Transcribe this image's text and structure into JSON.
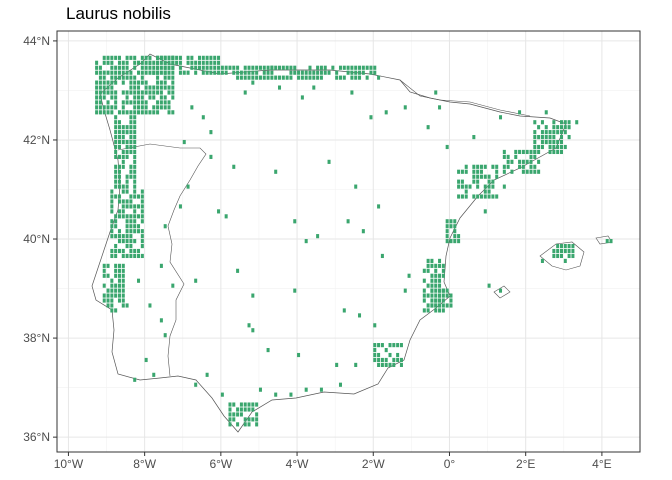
{
  "title": "Laurus nobilis",
  "colors": {
    "cell": "#3aa66e",
    "panel_border": "#333333",
    "grid_major": "#e6e6e6",
    "grid_minor": "#f2f2f2",
    "coast": "#555555",
    "tick_text": "#4d4d4d"
  },
  "chart_data": {
    "type": "map",
    "title": "Laurus nobilis",
    "xlim": [
      -10.3,
      5.0
    ],
    "ylim": [
      35.7,
      44.2
    ],
    "x_ticks": [
      {
        "value": -10,
        "label": "10°W"
      },
      {
        "value": -8,
        "label": "8°W"
      },
      {
        "value": -6,
        "label": "6°W"
      },
      {
        "value": -4,
        "label": "4°W"
      },
      {
        "value": -2,
        "label": "2°W"
      },
      {
        "value": 0,
        "label": "0°"
      },
      {
        "value": 2,
        "label": "2°E"
      },
      {
        "value": 4,
        "label": "4°E"
      }
    ],
    "y_ticks": [
      {
        "value": 36,
        "label": "36°N"
      },
      {
        "value": 38,
        "label": "38°N"
      },
      {
        "value": 40,
        "label": "40°N"
      },
      {
        "value": 42,
        "label": "42°N"
      },
      {
        "value": 44,
        "label": "44°N"
      }
    ],
    "grid": true,
    "cell_size_deg": 0.1,
    "occurrence_blocks": [
      {
        "lon": [
          -9.3,
          -7.2
        ],
        "lat": [
          42.5,
          43.7
        ]
      },
      {
        "lon": [
          -8.0,
          -5.8
        ],
        "lat": [
          43.3,
          43.7
        ]
      },
      {
        "lon": [
          -5.8,
          -1.8
        ],
        "lat": [
          43.2,
          43.5
        ]
      },
      {
        "lon": [
          -8.8,
          -8.2
        ],
        "lat": [
          41.0,
          42.5
        ]
      },
      {
        "lon": [
          -8.9,
          -8.0
        ],
        "lat": [
          39.6,
          41.0
        ]
      },
      {
        "lon": [
          -9.1,
          -8.5
        ],
        "lat": [
          38.5,
          39.5
        ]
      },
      {
        "lon": [
          2.2,
          3.2
        ],
        "lat": [
          41.7,
          42.4
        ]
      },
      {
        "lon": [
          1.4,
          2.4
        ],
        "lat": [
          41.3,
          41.8
        ]
      },
      {
        "lon": [
          0.2,
          1.3
        ],
        "lat": [
          40.8,
          41.5
        ]
      },
      {
        "lon": [
          -0.7,
          -0.1
        ],
        "lat": [
          38.5,
          39.6
        ]
      },
      {
        "lon": [
          -0.5,
          0.1
        ],
        "lat": [
          38.6,
          39.0
        ]
      },
      {
        "lon": [
          -2.0,
          -1.2
        ],
        "lat": [
          37.4,
          37.9
        ]
      },
      {
        "lon": [
          -5.8,
          -5.0
        ],
        "lat": [
          36.2,
          36.7
        ]
      },
      {
        "lon": [
          2.7,
          3.3
        ],
        "lat": [
          39.6,
          39.9
        ]
      },
      {
        "lon": [
          -0.1,
          0.3
        ],
        "lat": [
          39.9,
          40.4
        ]
      }
    ],
    "occurrence_cells": [
      [
        -8.5,
        38.6
      ],
      [
        -8.2,
        39.1
      ],
      [
        -7.6,
        39.4
      ],
      [
        -7.5,
        40.2
      ],
      [
        -7.1,
        40.6
      ],
      [
        -6.9,
        41.0
      ],
      [
        -6.3,
        41.6
      ],
      [
        -6.1,
        40.5
      ],
      [
        -5.9,
        40.4
      ],
      [
        -6.3,
        42.1
      ],
      [
        -5.4,
        42.9
      ],
      [
        -5.2,
        43.1
      ],
      [
        -4.5,
        43.0
      ],
      [
        -3.9,
        42.8
      ],
      [
        -3.6,
        43.0
      ],
      [
        -2.6,
        42.9
      ],
      [
        -2.1,
        42.4
      ],
      [
        -1.7,
        42.5
      ],
      [
        -1.2,
        42.6
      ],
      [
        -0.4,
        42.9
      ],
      [
        -0.3,
        42.6
      ],
      [
        -4.6,
        41.3
      ],
      [
        -4.1,
        40.3
      ],
      [
        -3.5,
        40.0
      ],
      [
        -2.7,
        40.3
      ],
      [
        -2.3,
        40.1
      ],
      [
        -3.8,
        39.9
      ],
      [
        -5.6,
        39.3
      ],
      [
        -5.2,
        38.8
      ],
      [
        -4.1,
        38.9
      ],
      [
        -5.3,
        38.2
      ],
      [
        -5.2,
        38.1
      ],
      [
        -4.8,
        37.7
      ],
      [
        -4.0,
        37.6
      ],
      [
        -3.0,
        37.4
      ],
      [
        -2.5,
        37.4
      ],
      [
        -6.4,
        37.2
      ],
      [
        -6.7,
        37.0
      ],
      [
        -6.0,
        36.8
      ],
      [
        -5.0,
        36.9
      ],
      [
        -4.6,
        36.8
      ],
      [
        -4.2,
        36.8
      ],
      [
        -3.8,
        36.9
      ],
      [
        -3.4,
        36.9
      ],
      [
        -2.9,
        37.0
      ],
      [
        -7.8,
        37.2
      ],
      [
        -8.3,
        37.1
      ],
      [
        -8.0,
        37.5
      ],
      [
        -7.5,
        38.0
      ],
      [
        -7.9,
        38.6
      ],
      [
        -7.6,
        38.3
      ],
      [
        -3.2,
        41.5
      ],
      [
        -2.5,
        41.0
      ],
      [
        -1.9,
        40.6
      ],
      [
        -1.8,
        39.6
      ],
      [
        -1.1,
        39.2
      ],
      [
        -1.2,
        38.9
      ],
      [
        -2.4,
        38.4
      ],
      [
        -2.8,
        38.5
      ],
      [
        -2.0,
        38.2
      ],
      [
        -0.6,
        42.2
      ],
      [
        -0.1,
        41.8
      ],
      [
        0.6,
        42.0
      ],
      [
        1.3,
        42.4
      ],
      [
        1.8,
        42.5
      ],
      [
        2.5,
        42.5
      ],
      [
        0.9,
        40.5
      ],
      [
        1.4,
        41.0
      ],
      [
        3.3,
        42.3
      ],
      [
        1.0,
        39.0
      ],
      [
        1.3,
        38.9
      ],
      [
        2.4,
        39.5
      ],
      [
        3.0,
        39.5
      ],
      [
        4.1,
        39.9
      ],
      [
        4.2,
        39.9
      ],
      [
        -7.3,
        43.6
      ],
      [
        -4.7,
        43.4
      ],
      [
        -7.0,
        41.9
      ],
      [
        -6.5,
        42.4
      ],
      [
        -6.8,
        42.6
      ],
      [
        -5.7,
        41.4
      ],
      [
        -7.3,
        39.0
      ],
      [
        -6.7,
        39.1
      ]
    ]
  }
}
